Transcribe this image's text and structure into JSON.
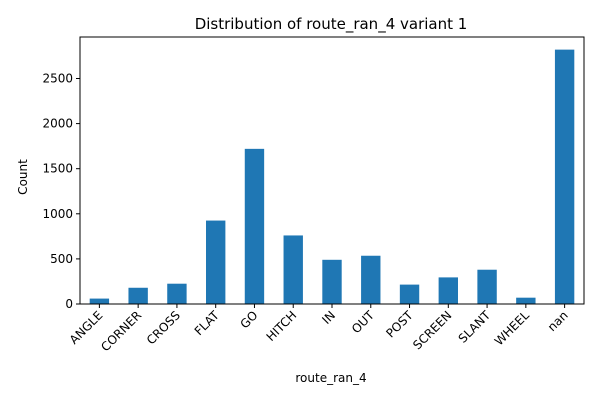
{
  "chart_data": {
    "type": "bar",
    "title": "Distribution of route_ran_4 variant 1",
    "xlabel": "route_ran_4",
    "ylabel": "Count",
    "categories": [
      "ANGLE",
      "CORNER",
      "CROSS",
      "FLAT",
      "GO",
      "HITCH",
      "IN",
      "OUT",
      "POST",
      "SCREEN",
      "SLANT",
      "WHEEL",
      "nan"
    ],
    "values": [
      60,
      180,
      225,
      925,
      1720,
      760,
      490,
      535,
      215,
      295,
      380,
      70,
      2820
    ],
    "yticks": [
      0,
      500,
      1000,
      1500,
      2000,
      2500
    ],
    "ylim": [
      0,
      2960
    ],
    "grid": false,
    "legend": "none",
    "bar_color": "#1f77b4"
  }
}
